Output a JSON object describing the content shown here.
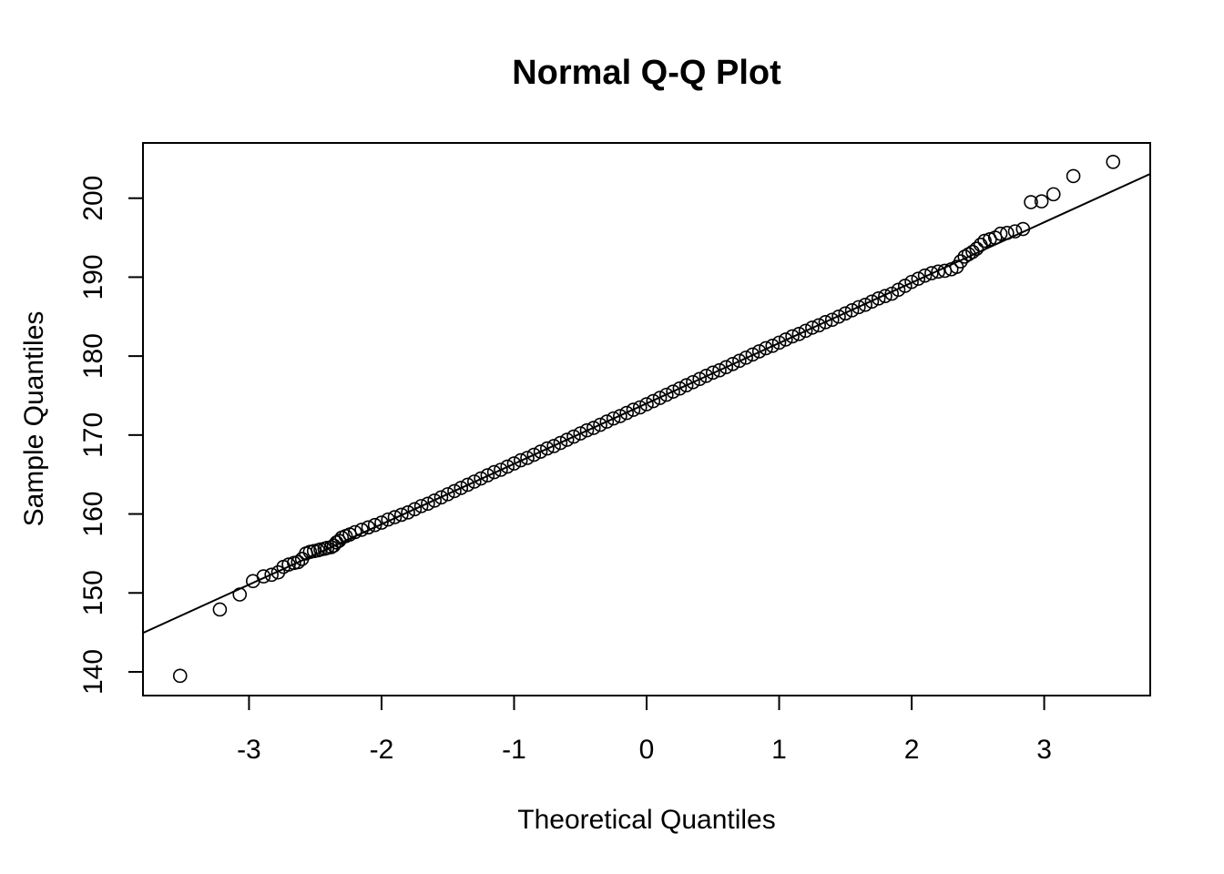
{
  "chart_data": {
    "type": "scatter",
    "title": "Normal Q-Q Plot",
    "xlabel": "Theoretical Quantiles",
    "ylabel": "Sample Quantiles",
    "xlim": [
      -3.8,
      3.8
    ],
    "ylim": [
      137,
      207
    ],
    "x_ticks": [
      -3,
      -2,
      -1,
      0,
      1,
      2,
      3
    ],
    "x_tick_labels": [
      "-3",
      "-2",
      "-1",
      "0",
      "1",
      "2",
      "3"
    ],
    "y_ticks": [
      140,
      150,
      160,
      170,
      180,
      190,
      200
    ],
    "y_tick_labels": [
      "140",
      "150",
      "160",
      "170",
      "180",
      "190",
      "200"
    ],
    "grid": false,
    "marker": "open-circle",
    "reference_line": {
      "slope": 7.65,
      "intercept": 174.0
    },
    "series": [
      {
        "points": [
          [
            -3.52,
            139.5
          ],
          [
            -3.22,
            147.9
          ],
          [
            -3.07,
            149.8
          ],
          [
            -2.97,
            151.5
          ],
          [
            -2.89,
            152.1
          ],
          [
            -2.83,
            152.3
          ],
          [
            -2.78,
            152.6
          ],
          [
            -2.74,
            153.3
          ],
          [
            -2.7,
            153.6
          ],
          [
            -2.66,
            153.8
          ],
          [
            -2.63,
            153.9
          ],
          [
            -2.6,
            154.3
          ],
          [
            -2.57,
            155.0
          ],
          [
            -2.54,
            155.2
          ],
          [
            -2.51,
            155.3
          ],
          [
            -2.48,
            155.4
          ],
          [
            -2.46,
            155.5
          ],
          [
            -2.43,
            155.6
          ],
          [
            -2.41,
            155.7
          ],
          [
            -2.38,
            155.8
          ],
          [
            -2.36,
            156.0
          ],
          [
            -2.34,
            156.4
          ],
          [
            -2.32,
            156.6
          ],
          [
            -2.3,
            157.0
          ],
          [
            -2.27,
            157.2
          ],
          [
            -2.24,
            157.4
          ],
          [
            -2.2,
            157.7
          ],
          [
            -2.15,
            158.0
          ],
          [
            -2.1,
            158.3
          ],
          [
            -2.05,
            158.6
          ],
          [
            -2.0,
            158.9
          ],
          [
            -1.95,
            159.3
          ],
          [
            -1.9,
            159.6
          ],
          [
            -1.85,
            159.9
          ],
          [
            -1.8,
            160.2
          ],
          [
            -1.75,
            160.6
          ],
          [
            -1.7,
            161.0
          ],
          [
            -1.65,
            161.3
          ],
          [
            -1.6,
            161.7
          ],
          [
            -1.55,
            162.1
          ],
          [
            -1.5,
            162.5
          ],
          [
            -1.45,
            162.9
          ],
          [
            -1.4,
            163.3
          ],
          [
            -1.35,
            163.7
          ],
          [
            -1.3,
            164.1
          ],
          [
            -1.25,
            164.5
          ],
          [
            -1.2,
            164.9
          ],
          [
            -1.15,
            165.3
          ],
          [
            -1.1,
            165.6
          ],
          [
            -1.05,
            166.0
          ],
          [
            -1.0,
            166.4
          ],
          [
            -0.95,
            166.8
          ],
          [
            -0.9,
            167.1
          ],
          [
            -0.85,
            167.5
          ],
          [
            -0.8,
            167.9
          ],
          [
            -0.75,
            168.3
          ],
          [
            -0.7,
            168.6
          ],
          [
            -0.65,
            169.0
          ],
          [
            -0.6,
            169.4
          ],
          [
            -0.55,
            169.8
          ],
          [
            -0.5,
            170.2
          ],
          [
            -0.45,
            170.6
          ],
          [
            -0.4,
            170.9
          ],
          [
            -0.35,
            171.3
          ],
          [
            -0.3,
            171.7
          ],
          [
            -0.25,
            172.1
          ],
          [
            -0.2,
            172.4
          ],
          [
            -0.15,
            172.8
          ],
          [
            -0.1,
            173.2
          ],
          [
            -0.05,
            173.5
          ],
          [
            0.0,
            173.9
          ],
          [
            0.05,
            174.3
          ],
          [
            0.1,
            174.7
          ],
          [
            0.15,
            175.1
          ],
          [
            0.2,
            175.5
          ],
          [
            0.25,
            175.9
          ],
          [
            0.3,
            176.3
          ],
          [
            0.35,
            176.7
          ],
          [
            0.4,
            177.1
          ],
          [
            0.45,
            177.5
          ],
          [
            0.5,
            177.9
          ],
          [
            0.55,
            178.2
          ],
          [
            0.6,
            178.6
          ],
          [
            0.65,
            179.0
          ],
          [
            0.7,
            179.4
          ],
          [
            0.75,
            179.8
          ],
          [
            0.8,
            180.2
          ],
          [
            0.85,
            180.6
          ],
          [
            0.9,
            181.0
          ],
          [
            0.95,
            181.3
          ],
          [
            1.0,
            181.7
          ],
          [
            1.05,
            182.1
          ],
          [
            1.1,
            182.5
          ],
          [
            1.15,
            182.8
          ],
          [
            1.2,
            183.2
          ],
          [
            1.25,
            183.6
          ],
          [
            1.3,
            183.9
          ],
          [
            1.35,
            184.3
          ],
          [
            1.4,
            184.6
          ],
          [
            1.45,
            185.0
          ],
          [
            1.5,
            185.4
          ],
          [
            1.55,
            185.8
          ],
          [
            1.6,
            186.2
          ],
          [
            1.65,
            186.5
          ],
          [
            1.7,
            186.9
          ],
          [
            1.75,
            187.3
          ],
          [
            1.8,
            187.6
          ],
          [
            1.85,
            187.9
          ],
          [
            1.9,
            188.4
          ],
          [
            1.95,
            188.9
          ],
          [
            2.0,
            189.4
          ],
          [
            2.05,
            189.8
          ],
          [
            2.1,
            190.2
          ],
          [
            2.15,
            190.5
          ],
          [
            2.2,
            190.7
          ],
          [
            2.25,
            190.8
          ],
          [
            2.3,
            191.0
          ],
          [
            2.34,
            191.3
          ],
          [
            2.37,
            192.0
          ],
          [
            2.4,
            192.6
          ],
          [
            2.43,
            192.9
          ],
          [
            2.46,
            193.2
          ],
          [
            2.49,
            193.6
          ],
          [
            2.52,
            194.1
          ],
          [
            2.55,
            194.6
          ],
          [
            2.59,
            194.8
          ],
          [
            2.63,
            195.0
          ],
          [
            2.67,
            195.5
          ],
          [
            2.72,
            195.6
          ],
          [
            2.78,
            195.8
          ],
          [
            2.84,
            196.1
          ],
          [
            2.9,
            199.5
          ],
          [
            2.98,
            199.6
          ],
          [
            3.07,
            200.5
          ],
          [
            3.22,
            202.8
          ],
          [
            3.52,
            204.6
          ]
        ]
      }
    ]
  }
}
